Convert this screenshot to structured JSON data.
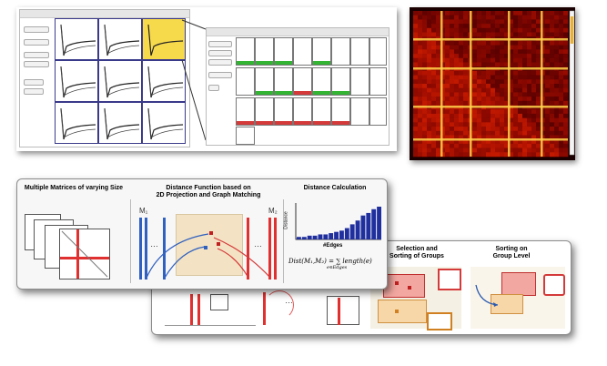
{
  "colors": {
    "gold": "#f7d94c",
    "plot_blue": "#3a3a8a",
    "green": "#33b533",
    "red": "#d43a3a",
    "hist_blue": "#1f2f9e",
    "tan": "#f3e3c4",
    "soft_red": "#f2a7a0"
  },
  "panel_front": {
    "step1_title": "Multiple Matrices of varying Size",
    "step2_title": "Distance Function based on",
    "step2_title_line2": "2D Projection and Graph Matching",
    "step3_title": "Distance Calculation",
    "m1_label": "M₁",
    "m2_label": "M₂",
    "ellipsis": "…",
    "hist_ylabel": "Distance",
    "hist_xlabel": "#Edges",
    "formula": "Dist(M₁,M₂) = ∑ length(e)",
    "formula_sub": "e∈Edges"
  },
  "panel_back": {
    "step4_title": "Selection and",
    "step4_title_line2": "Sorting of Groups",
    "step5_title": "Sorting on",
    "step5_title_line2": "Group Level",
    "ellipsis": "…"
  },
  "histogram": {
    "values": [
      2,
      2,
      3,
      3,
      4,
      4,
      5,
      6,
      7,
      9,
      12,
      15,
      19,
      21,
      24,
      26
    ]
  }
}
